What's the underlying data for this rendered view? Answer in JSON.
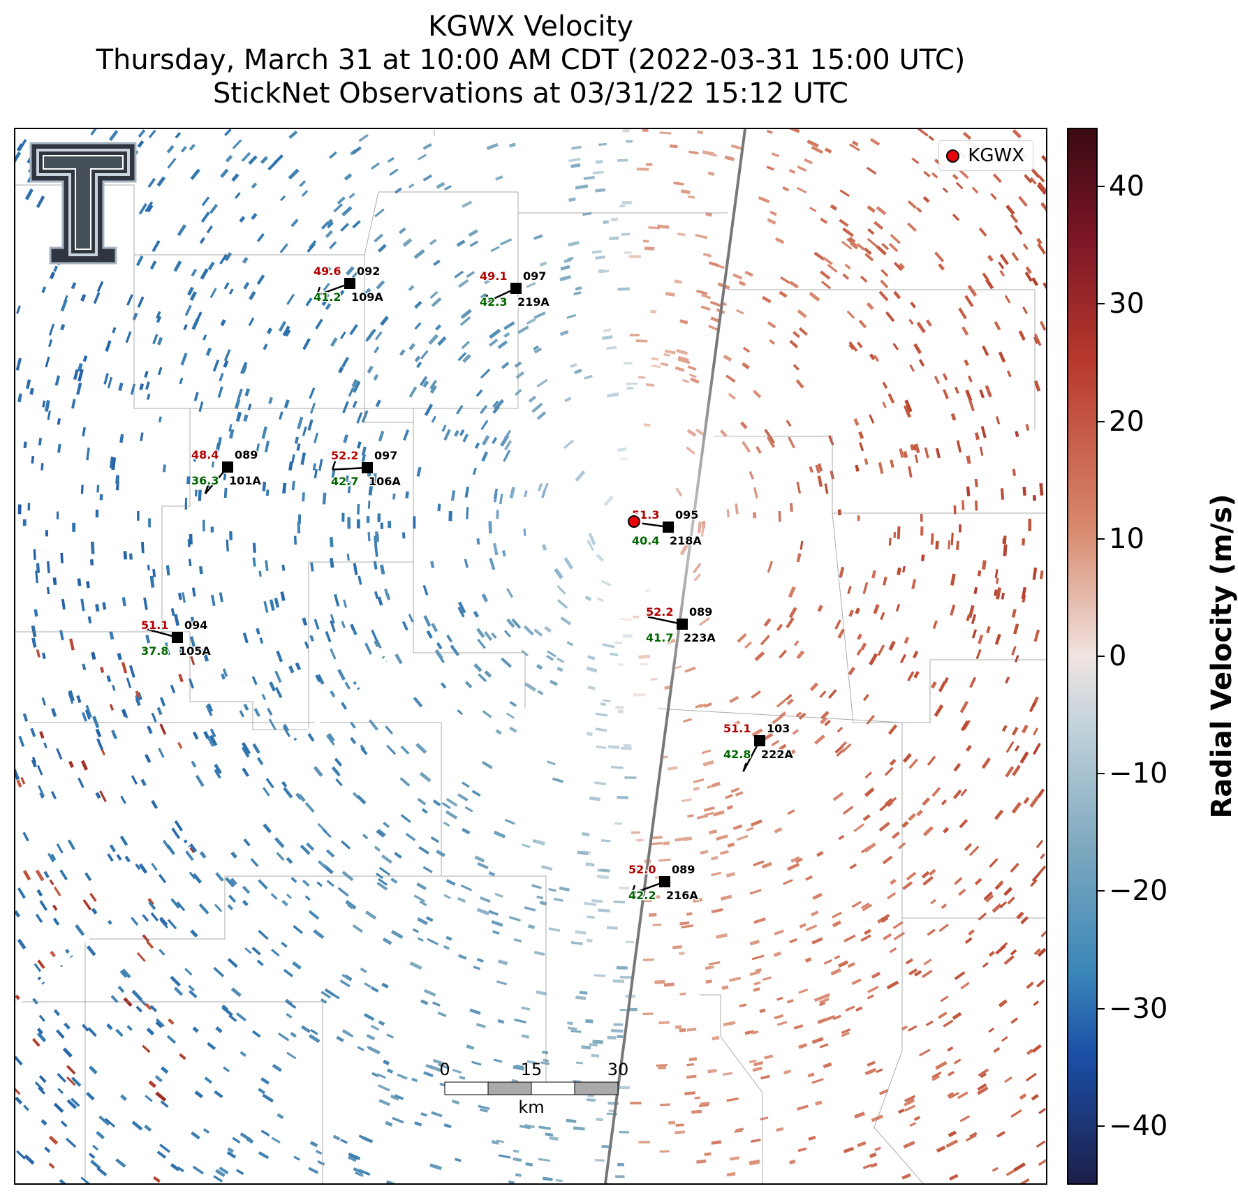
{
  "title": {
    "line1": "KGWX Velocity",
    "line2": "Thursday, March 31 at 10:00 AM CDT (2022-03-31 15:00 UTC)",
    "line3": "StickNet Observations at 03/31/22 15:12 UTC"
  },
  "legend": {
    "label": "KGWX",
    "marker_color": "#e8000b"
  },
  "colorbar": {
    "label": "Radial Velocity (m/s)",
    "range": [
      -45,
      45
    ],
    "ticks": [
      "40",
      "30",
      "20",
      "10",
      "0",
      "−10",
      "−20",
      "−30",
      "−40"
    ],
    "tick_values": [
      40,
      30,
      20,
      10,
      0,
      -10,
      -20,
      -30,
      -40
    ],
    "colors": {
      "max": "#3a0a12",
      "positive": "#b8392c",
      "zero": "#f1e4e1",
      "negative": "#3a86b8",
      "min": "#1c1f4a"
    }
  },
  "scale_bar": {
    "ticks": [
      "0",
      "15",
      "30"
    ],
    "unit": "km"
  },
  "stations": [
    {
      "id": "109A",
      "temp": "49.6",
      "dew": "41.2",
      "dir": "092"
    },
    {
      "id": "219A",
      "temp": "49.1",
      "dew": "42.3",
      "dir": "097"
    },
    {
      "id": "101A",
      "temp": "48.4",
      "dew": "36.3",
      "dir": "089"
    },
    {
      "id": "106A",
      "temp": "52.2",
      "dew": "42.7",
      "dir": "097"
    },
    {
      "id": "218A",
      "temp": "51.3",
      "dew": "40.4",
      "dir": "095"
    },
    {
      "id": "223A",
      "temp": "52.2",
      "dew": "41.7",
      "dir": "089"
    },
    {
      "id": "105A",
      "temp": "51.1",
      "dew": "37.8",
      "dir": "094"
    },
    {
      "id": "222A",
      "temp": "51.1",
      "dew": "42.8",
      "dir": "103"
    },
    {
      "id": "216A",
      "temp": "52.0",
      "dew": "42.2",
      "dir": "089"
    }
  ],
  "radar_site": {
    "name": "KGWX"
  }
}
